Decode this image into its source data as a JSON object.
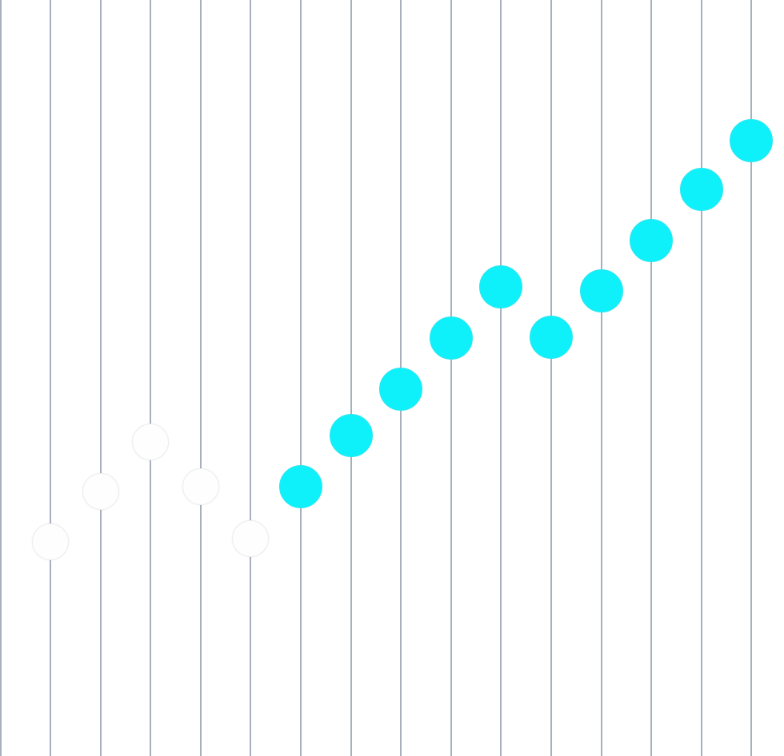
{
  "colors": {
    "track": "#a7b0bc",
    "active_thumb": "#0ef1fb",
    "inactive_thumb": "#fefefe",
    "background": "#ffffff"
  },
  "sliders": [
    {
      "state": "off",
      "level": 0.283
    },
    {
      "state": "off",
      "level": 0.35
    },
    {
      "state": "off",
      "level": 0.415
    },
    {
      "state": "off",
      "level": 0.356
    },
    {
      "state": "off",
      "level": 0.287
    },
    {
      "state": "on",
      "level": 0.356
    },
    {
      "state": "on",
      "level": 0.424
    },
    {
      "state": "on",
      "level": 0.485
    },
    {
      "state": "on",
      "level": 0.553
    },
    {
      "state": "on",
      "level": 0.621
    },
    {
      "state": "on",
      "level": 0.554
    },
    {
      "state": "on",
      "level": 0.615
    },
    {
      "state": "on",
      "level": 0.682
    },
    {
      "state": "on",
      "level": 0.749
    },
    {
      "state": "on",
      "level": 0.814
    }
  ]
}
